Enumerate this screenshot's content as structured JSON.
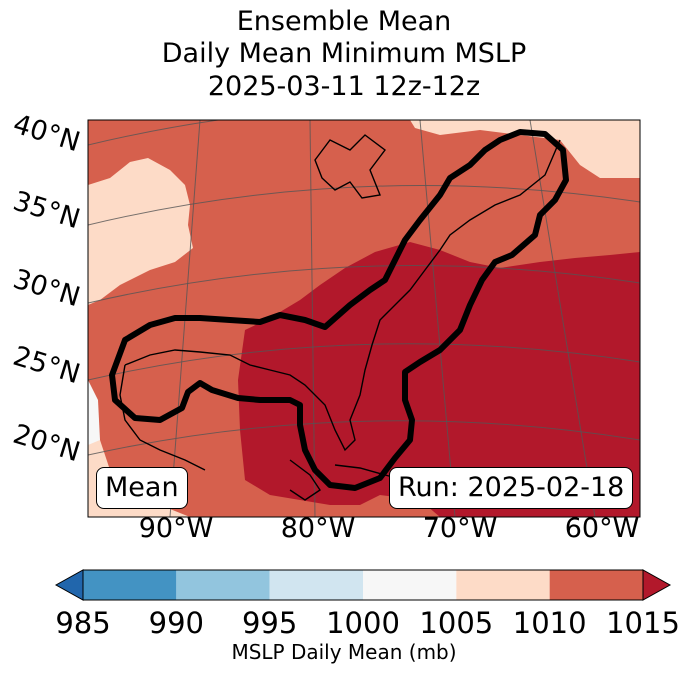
{
  "title": {
    "line1": "Ensemble Mean",
    "line2": "Daily Mean Minimum MSLP",
    "line3": "2025-03-11 12z-12z"
  },
  "map": {
    "lat_labels": [
      "40°N",
      "35°N",
      "30°N",
      "25°N",
      "20°N"
    ],
    "lon_labels": [
      "90°W",
      "80°W",
      "70°W",
      "60°W"
    ],
    "mean_label": "Mean",
    "run_label": "Run: 2025-02-18"
  },
  "colorbar": {
    "ticks": [
      "985",
      "990",
      "995",
      "1000",
      "1005",
      "1010",
      "1015"
    ],
    "colors": [
      "#4393c3",
      "#92c5de",
      "#d1e5f0",
      "#f7f7f7",
      "#fddbc7",
      "#d6604d",
      "#b2182b"
    ],
    "under_color": "#2166ac",
    "over_color": "#b2182b",
    "label": "MSLP Daily Mean (mb)"
  }
}
